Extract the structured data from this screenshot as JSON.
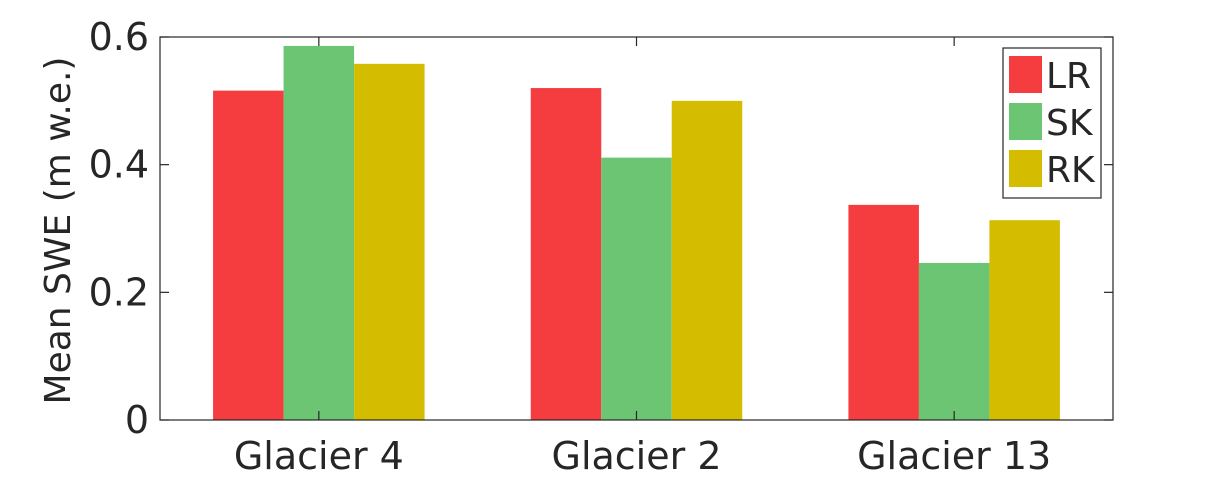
{
  "chart_data": {
    "type": "bar",
    "title": "",
    "xlabel": "",
    "ylabel": "Mean SWE (m w.e.)",
    "categories": [
      "Glacier 4",
      "Glacier 2",
      "Glacier 13"
    ],
    "series": [
      {
        "name": "LR",
        "color": "#f53c3e",
        "values": [
          0.516,
          0.52,
          0.337
        ]
      },
      {
        "name": "SK",
        "color": "#6bc573",
        "values": [
          0.586,
          0.411,
          0.246
        ]
      },
      {
        "name": "RK",
        "color": "#d4bd00",
        "values": [
          0.558,
          0.5,
          0.313
        ]
      }
    ],
    "ylim": [
      0,
      0.6
    ],
    "yticks": [
      0,
      0.2,
      0.4,
      0.6
    ],
    "ytick_labels": [
      "0",
      "0.2",
      "0.4",
      "0.6"
    ],
    "grid": false,
    "legend_position": "top-right",
    "box": true
  }
}
